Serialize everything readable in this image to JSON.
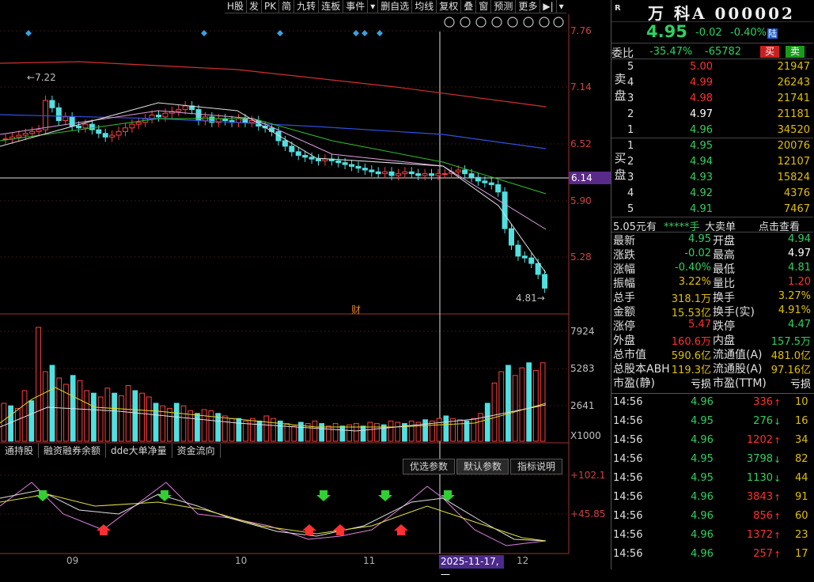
{
  "toolbar": [
    "H股",
    "发",
    "PK",
    "简",
    "九转",
    "连板",
    "事件",
    "▾",
    "删自选",
    "均线",
    "复权",
    "叠",
    "窗",
    "预测",
    "更多",
    "▶|",
    "▾"
  ],
  "chart_icons": [
    "eye-icon",
    "hand-icon",
    "refresh-icon",
    "undo-icon",
    "scissors-icon",
    "zoom-in-icon",
    "zoom-out-icon",
    "close-icon"
  ],
  "price_axis": [
    "7.76",
    "7.14",
    "6.52",
    "5.90",
    "5.28"
  ],
  "current_price_box": "6.14",
  "high_marker": "7.22",
  "low_marker": "4.81",
  "fin_marker": "财",
  "volume_axis": [
    "7924",
    "5283",
    "2641"
  ],
  "volume_unit": "X1000",
  "indicator_tabs": [
    "通持股",
    "融资融券余额",
    "dde大单净量",
    "资金流向"
  ],
  "param_tabs": [
    "优选参数",
    "默认参数",
    "指标说明"
  ],
  "indicator_axis": [
    "+102.1",
    "+45.85"
  ],
  "dates": [
    "09",
    "10",
    "11",
    "12"
  ],
  "crosshair_date": "2025-11-17,一",
  "stock": {
    "flag": "R",
    "name": "万 科A 000002",
    "price": "4.95",
    "change": "-0.02",
    "pct": "-0.40%",
    "market": "陆"
  },
  "weibi": {
    "label": "委比",
    "ratio": "-35.47%",
    "diff": "-65782",
    "buy": "买",
    "sell": "卖"
  },
  "sell_side": "卖盘",
  "buy_side": "买盘",
  "sell_book": [
    {
      "lvl": "5",
      "price": "5.00",
      "vol": "21947",
      "color": "red"
    },
    {
      "lvl": "4",
      "price": "4.99",
      "vol": "26243",
      "color": "red"
    },
    {
      "lvl": "3",
      "price": "4.98",
      "vol": "21741",
      "color": "red"
    },
    {
      "lvl": "2",
      "price": "4.97",
      "vol": "21181",
      "color": "white"
    },
    {
      "lvl": "1",
      "price": "4.96",
      "vol": "34520",
      "color": "green"
    }
  ],
  "buy_book": [
    {
      "lvl": "1",
      "price": "4.95",
      "vol": "20076",
      "color": "green"
    },
    {
      "lvl": "2",
      "price": "4.94",
      "vol": "12107",
      "color": "green"
    },
    {
      "lvl": "3",
      "price": "4.93",
      "vol": "15824",
      "color": "green"
    },
    {
      "lvl": "4",
      "price": "4.92",
      "vol": "4376",
      "color": "green"
    },
    {
      "lvl": "5",
      "price": "4.91",
      "vol": "7467",
      "color": "green"
    }
  ],
  "big_order": {
    "price": "5.05元有",
    "stars": "*****手",
    "label": "大卖单",
    "link": "点击查看"
  },
  "stats": [
    {
      "k1": "最新",
      "v1": "4.95",
      "c1": "green",
      "k2": "开盘",
      "v2": "4.94",
      "c2": "green"
    },
    {
      "k1": "涨跌",
      "v1": "-0.02",
      "c1": "green",
      "k2": "最高",
      "v2": "4.97",
      "c2": "white"
    },
    {
      "k1": "涨幅",
      "v1": "-0.40%",
      "c1": "green",
      "k2": "最低",
      "v2": "4.81",
      "c2": "green"
    },
    {
      "k1": "振幅",
      "v1": "3.22%",
      "c1": "yellow",
      "k2": "量比",
      "v2": "1.20",
      "c2": "red"
    },
    {
      "k1": "总手",
      "v1": "318.1万",
      "c1": "yellow",
      "k2": "换手",
      "v2": "3.27%",
      "c2": "yellow"
    },
    {
      "k1": "金额",
      "v1": "15.53亿",
      "c1": "yellow",
      "k2": "换手(实)",
      "v2": "4.91%",
      "c2": "yellow"
    },
    {
      "k1": "涨停",
      "v1": "5.47",
      "c1": "red",
      "k2": "跌停",
      "v2": "4.47",
      "c2": "green"
    },
    {
      "k1": "外盘",
      "v1": "160.6万",
      "c1": "red",
      "k2": "内盘",
      "v2": "157.5万",
      "c2": "green"
    },
    {
      "k1": "总市值",
      "v1": "590.6亿",
      "c1": "yellow",
      "k2": "流通值(A)",
      "v2": "481.0亿",
      "c2": "yellow"
    },
    {
      "k1": "总股本ABH",
      "v1": "119.3亿",
      "c1": "yellow",
      "k2": "流通股(A)",
      "v2": "97.16亿",
      "c2": "yellow"
    },
    {
      "k1": "市盈(静)",
      "v1": "亏损",
      "c1": "white",
      "k2": "市盈(TTM)",
      "v2": "亏损",
      "c2": "white"
    }
  ],
  "ticks": [
    {
      "t": "14:56",
      "p": "4.96",
      "pc": "green",
      "v": "336",
      "vc": "red",
      "a": "↑",
      "ac": "red",
      "n": "10"
    },
    {
      "t": "14:56",
      "p": "4.95",
      "pc": "green",
      "v": "276",
      "vc": "green",
      "a": "↓",
      "ac": "green",
      "n": "16"
    },
    {
      "t": "14:56",
      "p": "4.96",
      "pc": "green",
      "v": "1202",
      "vc": "red",
      "a": "↑",
      "ac": "red",
      "n": "34"
    },
    {
      "t": "14:56",
      "p": "4.95",
      "pc": "green",
      "v": "3798",
      "vc": "green",
      "a": "↓",
      "ac": "green",
      "n": "82"
    },
    {
      "t": "14:56",
      "p": "4.95",
      "pc": "green",
      "v": "1130",
      "vc": "green",
      "a": "↓",
      "ac": "green",
      "n": "44"
    },
    {
      "t": "14:56",
      "p": "4.96",
      "pc": "green",
      "v": "3843",
      "vc": "red",
      "a": "↑",
      "ac": "red",
      "n": "91"
    },
    {
      "t": "14:56",
      "p": "4.96",
      "pc": "green",
      "v": "856",
      "vc": "red",
      "a": "↑",
      "ac": "red",
      "n": "60"
    },
    {
      "t": "14:56",
      "p": "4.96",
      "pc": "green",
      "v": "1372",
      "vc": "red",
      "a": "↑",
      "ac": "red",
      "n": "23"
    },
    {
      "t": "14:56",
      "p": "4.96",
      "pc": "green",
      "v": "257",
      "vc": "red",
      "a": "↑",
      "ac": "red",
      "n": "17"
    }
  ]
}
